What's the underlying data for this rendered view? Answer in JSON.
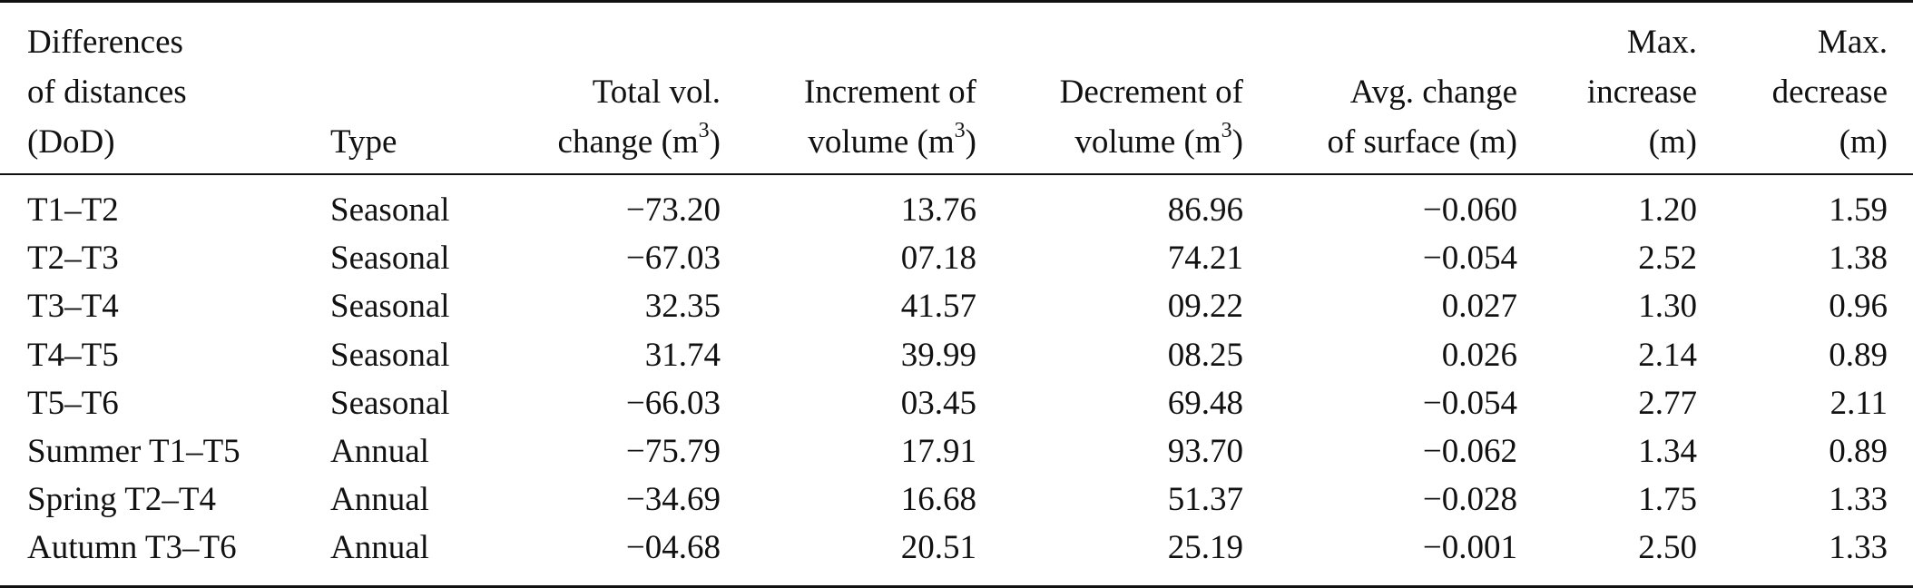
{
  "table": {
    "headers": [
      {
        "lines": [
          "Differences",
          "of distances",
          "(DoD)"
        ]
      },
      {
        "lines": [
          "Type"
        ]
      },
      {
        "lines": [
          "Total vol.",
          "change (m",
          "3",
          ")"
        ]
      },
      {
        "lines": [
          "Increment of",
          "volume (m",
          "3",
          ")"
        ]
      },
      {
        "lines": [
          "Decrement of",
          "volume (m",
          "3",
          ")"
        ]
      },
      {
        "lines": [
          "Avg. change",
          "of surface (m)"
        ]
      },
      {
        "lines": [
          "Max.",
          "increase",
          "(m)"
        ]
      },
      {
        "lines": [
          "Max.",
          "decrease",
          "(m)"
        ]
      }
    ],
    "rows": [
      [
        "T1–T2",
        "Seasonal",
        "−73.20",
        "13.76",
        "86.96",
        "−0.060",
        "1.20",
        "1.59"
      ],
      [
        "T2–T3",
        "Seasonal",
        "−67.03",
        "07.18",
        "74.21",
        "−0.054",
        "2.52",
        "1.38"
      ],
      [
        "T3–T4",
        "Seasonal",
        "32.35",
        "41.57",
        "09.22",
        "0.027",
        "1.30",
        "0.96"
      ],
      [
        "T4–T5",
        "Seasonal",
        "31.74",
        "39.99",
        "08.25",
        "0.026",
        "2.14",
        "0.89"
      ],
      [
        "T5–T6",
        "Seasonal",
        "−66.03",
        "03.45",
        "69.48",
        "−0.054",
        "2.77",
        "2.11"
      ],
      [
        "Summer T1–T5",
        "Annual",
        "−75.79",
        "17.91",
        "93.70",
        "−0.062",
        "1.34",
        "0.89"
      ],
      [
        "Spring T2–T4",
        "Annual",
        "−34.69",
        "16.68",
        "51.37",
        "−0.028",
        "1.75",
        "1.33"
      ],
      [
        "Autumn T3–T6",
        "Annual",
        "−04.68",
        "20.51",
        "25.19",
        "−0.001",
        "2.50",
        "1.33"
      ]
    ]
  }
}
